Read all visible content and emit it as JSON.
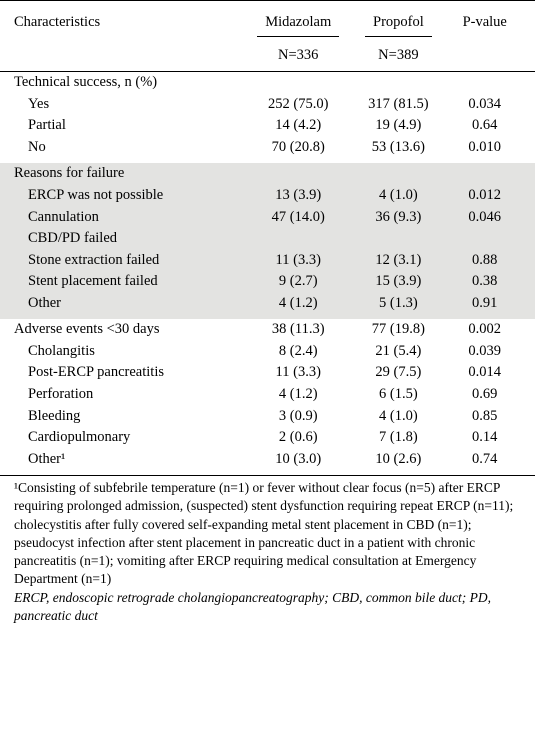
{
  "header": {
    "characteristics": "Characteristics",
    "group1": "Midazolam",
    "group2": "Propofol",
    "pvalue": "P-value",
    "n1": "N=336",
    "n2": "N=389"
  },
  "sections": [
    {
      "shaded": false,
      "title": "Technical success, n (%)",
      "rows": [
        {
          "label": "Yes",
          "v1": "252 (75.0)",
          "v2": "317 (81.5)",
          "p": "0.034"
        },
        {
          "label": "Partial",
          "v1": "14 (4.2)",
          "v2": "19 (4.9)",
          "p": "0.64"
        },
        {
          "label": "No",
          "v1": "70 (20.8)",
          "v2": "53 (13.6)",
          "p": "0.010"
        }
      ]
    },
    {
      "shaded": true,
      "title": "Reasons for failure",
      "rows": [
        {
          "label": "ERCP was not possible",
          "v1": "13 (3.9)",
          "v2": "4 (1.0)",
          "p": "0.012"
        },
        {
          "label": "Cannulation",
          "v1": "47 (14.0)",
          "v2": "36 (9.3)",
          "p": "0.046"
        },
        {
          "label": "CBD/PD failed",
          "v1": "",
          "v2": "",
          "p": ""
        },
        {
          "label": "Stone extraction failed",
          "v1": "11 (3.3)",
          "v2": "12 (3.1)",
          "p": "0.88"
        },
        {
          "label": "Stent placement failed",
          "v1": "9 (2.7)",
          "v2": "15 (3.9)",
          "p": "0.38"
        },
        {
          "label": "Other",
          "v1": "4 (1.2)",
          "v2": "5 (1.3)",
          "p": "0.91"
        }
      ]
    },
    {
      "shaded": false,
      "title": "Adverse events <30 days",
      "title_v1": "38 (11.3)",
      "title_v2": "77 (19.8)",
      "title_p": "0.002",
      "rows": [
        {
          "label": "Cholangitis",
          "v1": "8 (2.4)",
          "v2": "21 (5.4)",
          "p": "0.039"
        },
        {
          "label": "Post-ERCP pancreatitis",
          "v1": "11 (3.3)",
          "v2": "29 (7.5)",
          "p": "0.014"
        },
        {
          "label": "Perforation",
          "v1": "4 (1.2)",
          "v2": "6 (1.5)",
          "p": "0.69"
        },
        {
          "label": "Bleeding",
          "v1": "3 (0.9)",
          "v2": "4 (1.0)",
          "p": "0.85"
        },
        {
          "label": "Cardiopulmonary",
          "v1": "2 (0.6)",
          "v2": "7 (1.8)",
          "p": "0.14"
        },
        {
          "label": "Other¹",
          "v1": "10 (3.0)",
          "v2": "10 (2.6)",
          "p": "0.74"
        }
      ]
    }
  ],
  "footnote": {
    "text": "¹Consisting of subfebrile temperature (n=1) or fever without clear focus (n=5) after ERCP requiring prolonged admission, (suspected) stent dysfunction requiring repeat ERCP (n=11); cholecystitis after fully covered self-expanding metal stent placement in CBD (n=1); pseudocyst infection after stent placement in pancreatic duct in a patient with chronic pancreatitis (n=1); vomiting after ERCP requiring medical consultation at Emergency Department (n=1)",
    "abbrev": "ERCP, endoscopic retrograde cholangiopancreatography; CBD, common bile duct; PD, pancreatic duct"
  },
  "style": {
    "shade_bg": "#e3e3e1",
    "font_family": "Minion Pro, Times New Roman, Georgia, serif",
    "font_size_pt": 11,
    "rule_color": "#000000"
  }
}
